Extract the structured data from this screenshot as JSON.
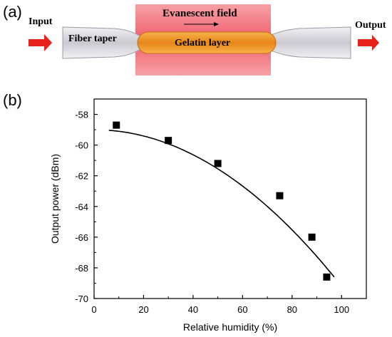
{
  "panel_a": {
    "label": "(a)",
    "input_label": "Input",
    "output_label": "Output",
    "fiber_label": "Fiber taper",
    "field_label": "Evanescent field",
    "layer_label": "Gelatin layer",
    "colors": {
      "field": "#f2707a",
      "layer": "#f39422",
      "arrow": "#e8221a",
      "fiber": "#d6d6dc"
    }
  },
  "panel_b": {
    "label": "(b)"
  },
  "chart_data": {
    "type": "scatter",
    "xlabel": "Relative humidity (%)",
    "ylabel": "Output power (dBm)",
    "xlim": [
      0,
      110
    ],
    "ylim": [
      -70,
      -57
    ],
    "xticks": [
      0,
      20,
      40,
      60,
      80,
      100
    ],
    "yticks": [
      -70,
      -68,
      -66,
      -64,
      -62,
      -60,
      -58
    ],
    "grid": false,
    "series": [
      {
        "marker": "square",
        "color": "#000000",
        "x": [
          9,
          30,
          50,
          75,
          88,
          94
        ],
        "y": [
          -58.7,
          -59.7,
          -61.2,
          -63.3,
          -66.0,
          -68.6
        ]
      }
    ],
    "fit_curve": {
      "color": "#000000",
      "x_range": [
        6,
        97
      ],
      "comment": "quadratic fit",
      "coefficients": [
        -59.0,
        0.0,
        -0.00102
      ]
    }
  }
}
